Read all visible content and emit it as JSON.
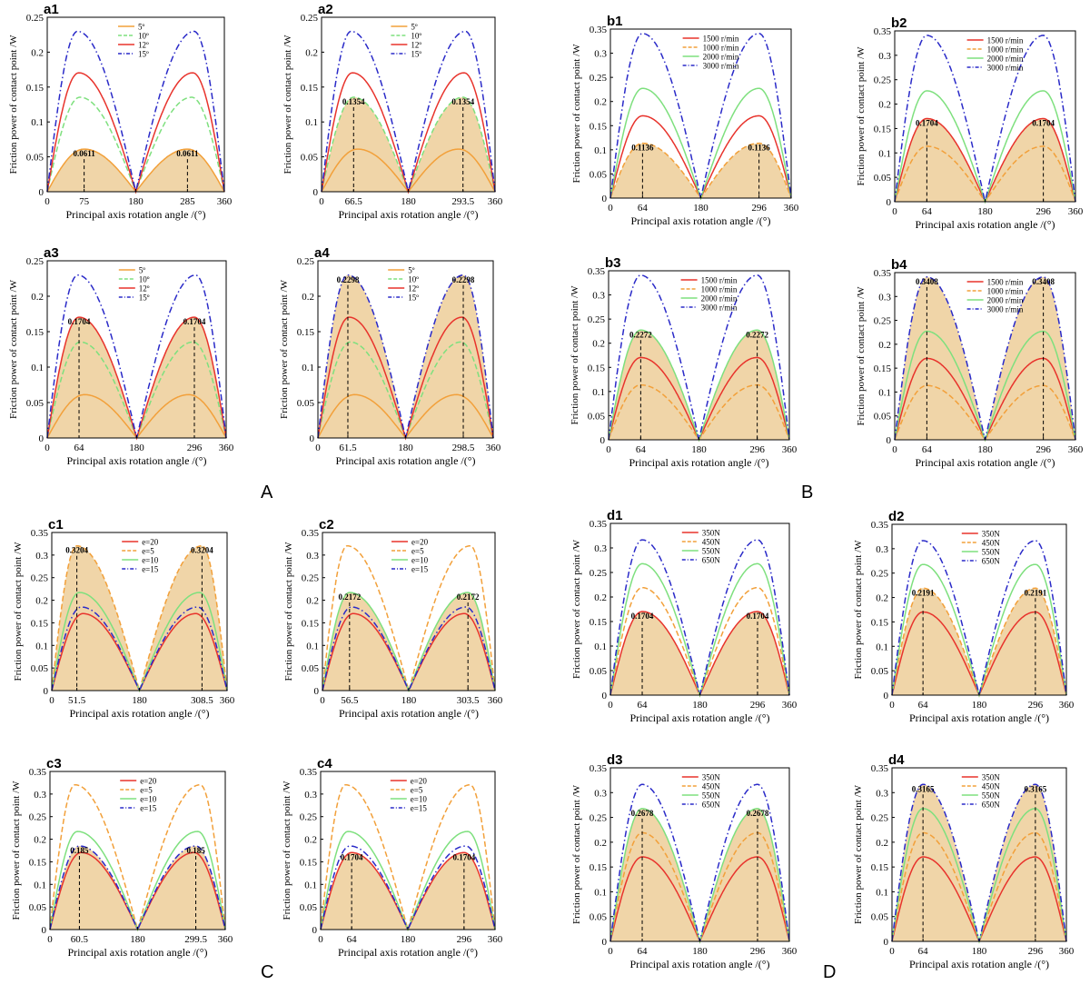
{
  "figure": {
    "group_labels": [
      "A",
      "B",
      "C",
      "D"
    ],
    "colors": {
      "fill": "#f0d5a8",
      "red": "#e8332c",
      "orange": "#f2a03a",
      "green": "#7ee07e",
      "blue": "#2a2ac8",
      "axis": "#000000",
      "peak_line": "#000000"
    },
    "legend_styles": [
      "solid",
      "dashed",
      "solid",
      "dashdot"
    ],
    "legend_orders": {
      "A": [
        "orange",
        "green",
        "red",
        "blue"
      ],
      "B": [
        "red",
        "orange",
        "green",
        "blue"
      ],
      "C": [
        "red",
        "orange",
        "green",
        "blue"
      ],
      "D": [
        "red",
        "orange",
        "green",
        "blue"
      ]
    }
  },
  "chart_data": [
    {
      "id": "a1",
      "group": "A",
      "type": "line",
      "title": "a1",
      "xlabel": "Principal axis rotation angle /(°)",
      "ylabel": "Friction power of contact point /W",
      "xlim": [
        0,
        360
      ],
      "ylim": [
        0,
        0.25
      ],
      "yticks": [
        0,
        0.05,
        0.1,
        0.15,
        0.2,
        0.25
      ],
      "xticks": [
        0,
        75,
        180,
        285,
        360
      ],
      "series": [
        {
          "name": "5º",
          "peak": 0.0611,
          "p1": 75,
          "p2": 285
        },
        {
          "name": "10º",
          "peak": 0.1354,
          "p1": 66.5,
          "p2": 293.5
        },
        {
          "name": "12º",
          "peak": 0.1704,
          "p1": 64,
          "p2": 296
        },
        {
          "name": "15º",
          "peak": 0.2298,
          "p1": 61.5,
          "p2": 298.5
        }
      ],
      "highlight": 0,
      "annotation": {
        "value": "0.0611",
        "x": [
          75,
          285
        ]
      }
    },
    {
      "id": "a2",
      "group": "A",
      "type": "line",
      "title": "a2",
      "xlabel": "Principal axis rotation angle /(°)",
      "ylabel": "Friction power of contact point /W",
      "xlim": [
        0,
        360
      ],
      "ylim": [
        0,
        0.25
      ],
      "yticks": [
        0,
        0.05,
        0.1,
        0.15,
        0.2,
        0.25
      ],
      "xticks": [
        0,
        66.5,
        180,
        293.5,
        360
      ],
      "series": [
        {
          "name": "5º",
          "peak": 0.0611,
          "p1": 75,
          "p2": 285
        },
        {
          "name": "10º",
          "peak": 0.1354,
          "p1": 66.5,
          "p2": 293.5
        },
        {
          "name": "12º",
          "peak": 0.1704,
          "p1": 64,
          "p2": 296
        },
        {
          "name": "15º",
          "peak": 0.2298,
          "p1": 61.5,
          "p2": 298.5
        }
      ],
      "highlight": 1,
      "annotation": {
        "value": "0.1354",
        "x": [
          66.5,
          293.5
        ]
      }
    },
    {
      "id": "b1",
      "group": "B",
      "type": "line",
      "title": "b1",
      "xlabel": "Principal axis rotation angle /(°)",
      "ylabel": "Friction power of contact point /W",
      "xlim": [
        0,
        360
      ],
      "ylim": [
        0,
        0.35
      ],
      "yticks": [
        0,
        0.05,
        0.1,
        0.15,
        0.2,
        0.25,
        0.3,
        0.35
      ],
      "xticks": [
        0,
        64,
        180,
        296,
        360
      ],
      "series": [
        {
          "name": "1500 r/min",
          "peak": 0.1704,
          "p1": 64,
          "p2": 296
        },
        {
          "name": "1000 r/min",
          "peak": 0.1136,
          "p1": 64,
          "p2": 296
        },
        {
          "name": "2000 r/min",
          "peak": 0.2272,
          "p1": 64,
          "p2": 296
        },
        {
          "name": "3000 r/min",
          "peak": 0.3408,
          "p1": 64,
          "p2": 296
        }
      ],
      "highlight": 1,
      "annotation": {
        "value": "0.1136",
        "x": [
          64,
          296
        ]
      }
    },
    {
      "id": "b2",
      "group": "B",
      "type": "line",
      "title": "b2",
      "xlabel": "Principal axis rotation angle /(°)",
      "ylabel": "Friction power of contact point /W",
      "xlim": [
        0,
        360
      ],
      "ylim": [
        0,
        0.35
      ],
      "yticks": [
        0,
        0.05,
        0.1,
        0.15,
        0.2,
        0.25,
        0.3,
        0.35
      ],
      "xticks": [
        0,
        64,
        180,
        296,
        360
      ],
      "series": [
        {
          "name": "1500 r/min",
          "peak": 0.1704,
          "p1": 64,
          "p2": 296
        },
        {
          "name": "1000 r/min",
          "peak": 0.1136,
          "p1": 64,
          "p2": 296
        },
        {
          "name": "2000 r/min",
          "peak": 0.2272,
          "p1": 64,
          "p2": 296
        },
        {
          "name": "3000 r/min",
          "peak": 0.3408,
          "p1": 64,
          "p2": 296
        }
      ],
      "highlight": 0,
      "annotation": {
        "value": "0.1704",
        "x": [
          64,
          296
        ]
      }
    },
    {
      "id": "a3",
      "group": "A",
      "type": "line",
      "title": "a3",
      "xlabel": "Principal axis rotation angle /(°)",
      "ylabel": "Friction power of contact point /W",
      "xlim": [
        0,
        360
      ],
      "ylim": [
        0,
        0.25
      ],
      "yticks": [
        0,
        0.05,
        0.1,
        0.15,
        0.2,
        0.25
      ],
      "xticks": [
        0,
        64,
        180,
        296,
        360
      ],
      "series": [
        {
          "name": "5º",
          "peak": 0.0611,
          "p1": 75,
          "p2": 285
        },
        {
          "name": "10º",
          "peak": 0.1354,
          "p1": 66.5,
          "p2": 293.5
        },
        {
          "name": "12º",
          "peak": 0.1704,
          "p1": 64,
          "p2": 296
        },
        {
          "name": "15º",
          "peak": 0.2298,
          "p1": 61.5,
          "p2": 298.5
        }
      ],
      "highlight": 2,
      "annotation": {
        "value": "0.1704",
        "x": [
          64,
          296
        ]
      }
    },
    {
      "id": "a4",
      "group": "A",
      "type": "line",
      "title": "a4",
      "xlabel": "Principal axis rotation angle /(°)",
      "ylabel": "Friction power of contact point /W",
      "xlim": [
        0,
        360
      ],
      "ylim": [
        0,
        0.25
      ],
      "yticks": [
        0,
        0.05,
        0.1,
        0.15,
        0.2,
        0.25
      ],
      "xticks": [
        0,
        61.5,
        180,
        298.5,
        360
      ],
      "series": [
        {
          "name": "5º",
          "peak": 0.0611,
          "p1": 75,
          "p2": 285
        },
        {
          "name": "10º",
          "peak": 0.1354,
          "p1": 66.5,
          "p2": 293.5
        },
        {
          "name": "12º",
          "peak": 0.1704,
          "p1": 64,
          "p2": 296
        },
        {
          "name": "15º",
          "peak": 0.2298,
          "p1": 61.5,
          "p2": 298.5
        }
      ],
      "highlight": 3,
      "annotation": {
        "value": "0.2298",
        "x": [
          61.5,
          298.5
        ]
      }
    },
    {
      "id": "b3",
      "group": "B",
      "type": "line",
      "title": "b3",
      "xlabel": "Principal axis rotation angle /(°)",
      "ylabel": "Friction power of contact point /W",
      "xlim": [
        0,
        360
      ],
      "ylim": [
        0,
        0.35
      ],
      "yticks": [
        0,
        0.05,
        0.1,
        0.15,
        0.2,
        0.25,
        0.3,
        0.35
      ],
      "xticks": [
        0,
        64,
        180,
        296,
        360
      ],
      "series": [
        {
          "name": "1500 r/min",
          "peak": 0.1704,
          "p1": 64,
          "p2": 296
        },
        {
          "name": "1000 r/min",
          "peak": 0.1136,
          "p1": 64,
          "p2": 296
        },
        {
          "name": "2000 r/min",
          "peak": 0.2272,
          "p1": 64,
          "p2": 296
        },
        {
          "name": "3000 r/min",
          "peak": 0.3408,
          "p1": 64,
          "p2": 296
        }
      ],
      "highlight": 2,
      "annotation": {
        "value": "0.2272",
        "x": [
          64,
          296
        ]
      }
    },
    {
      "id": "b4",
      "group": "B",
      "type": "line",
      "title": "b4",
      "xlabel": "Principal axis rotation angle /(°)",
      "ylabel": "Friction power of contact point /W",
      "xlim": [
        0,
        360
      ],
      "ylim": [
        0,
        0.35
      ],
      "yticks": [
        0,
        0.05,
        0.1,
        0.15,
        0.2,
        0.25,
        0.3,
        0.35
      ],
      "xticks": [
        0,
        64,
        180,
        296,
        360
      ],
      "series": [
        {
          "name": "1500 r/min",
          "peak": 0.1704,
          "p1": 64,
          "p2": 296
        },
        {
          "name": "1000 r/min",
          "peak": 0.1136,
          "p1": 64,
          "p2": 296
        },
        {
          "name": "2000 r/min",
          "peak": 0.2272,
          "p1": 64,
          "p2": 296
        },
        {
          "name": "3000 r/min",
          "peak": 0.3408,
          "p1": 64,
          "p2": 296
        }
      ],
      "highlight": 3,
      "annotation": {
        "value": "0.3408",
        "x": [
          64,
          296
        ]
      }
    },
    {
      "id": "c1",
      "group": "C",
      "type": "line",
      "title": "c1",
      "xlabel": "Principal axis rotation angle /(°)",
      "ylabel": "Friction power of contact point /W",
      "xlim": [
        0,
        360
      ],
      "ylim": [
        0,
        0.35
      ],
      "yticks": [
        0,
        0.05,
        0.1,
        0.15,
        0.2,
        0.25,
        0.3,
        0.35
      ],
      "xticks": [
        0,
        51.5,
        180,
        308.5,
        360
      ],
      "series": [
        {
          "name": "e=20",
          "peak": 0.1704,
          "p1": 64,
          "p2": 296
        },
        {
          "name": "e=5",
          "peak": 0.3204,
          "p1": 51.5,
          "p2": 308.5,
          "mid_bumps": 0.12
        },
        {
          "name": "e=10",
          "peak": 0.2172,
          "p1": 56.5,
          "p2": 303.5,
          "mid_bumps": 0.02
        },
        {
          "name": "e=15",
          "peak": 0.185,
          "p1": 60.5,
          "p2": 299.5
        }
      ],
      "highlight": 1,
      "annotation": {
        "value": "0.3204",
        "x": [
          51.5,
          308.5
        ]
      }
    },
    {
      "id": "c2",
      "group": "C",
      "type": "line",
      "title": "c2",
      "xlabel": "Principal axis rotation angle /(°)",
      "ylabel": "Friction power of contact point /W",
      "xlim": [
        0,
        360
      ],
      "ylim": [
        0,
        0.35
      ],
      "yticks": [
        0,
        0.05,
        0.1,
        0.15,
        0.2,
        0.25,
        0.3,
        0.35
      ],
      "xticks": [
        0,
        56.5,
        180,
        303.5,
        360
      ],
      "series": [
        {
          "name": "e=20",
          "peak": 0.1704,
          "p1": 64,
          "p2": 296
        },
        {
          "name": "e=5",
          "peak": 0.3204,
          "p1": 51.5,
          "p2": 308.5,
          "mid_bumps": 0.12
        },
        {
          "name": "e=10",
          "peak": 0.2172,
          "p1": 56.5,
          "p2": 303.5,
          "mid_bumps": 0.02
        },
        {
          "name": "e=15",
          "peak": 0.185,
          "p1": 60.5,
          "p2": 299.5
        }
      ],
      "highlight": 2,
      "annotation": {
        "value": "0.2172",
        "x": [
          56.5,
          303.5
        ]
      }
    },
    {
      "id": "d1",
      "group": "D",
      "type": "line",
      "title": "d1",
      "xlabel": "Principal axis rotation angle /(°)",
      "ylabel": "Friction power of contact point /W",
      "xlim": [
        0,
        360
      ],
      "ylim": [
        0,
        0.35
      ],
      "yticks": [
        0,
        0.05,
        0.1,
        0.15,
        0.2,
        0.25,
        0.3,
        0.35
      ],
      "xticks": [
        0,
        64,
        180,
        296,
        360
      ],
      "series": [
        {
          "name": "350N",
          "peak": 0.1704,
          "p1": 64,
          "p2": 296
        },
        {
          "name": "450N",
          "peak": 0.2191,
          "p1": 64,
          "p2": 296
        },
        {
          "name": "550N",
          "peak": 0.2678,
          "p1": 64,
          "p2": 296
        },
        {
          "name": "650N",
          "peak": 0.3165,
          "p1": 64,
          "p2": 296
        }
      ],
      "highlight": 0,
      "annotation": {
        "value": "0.1704",
        "x": [
          64,
          296
        ]
      }
    },
    {
      "id": "d2",
      "group": "D",
      "type": "line",
      "title": "d2",
      "xlabel": "Principal axis rotation angle /(°)",
      "ylabel": "Friction power of contact point /W",
      "xlim": [
        0,
        360
      ],
      "ylim": [
        0,
        0.35
      ],
      "yticks": [
        0,
        0.05,
        0.1,
        0.15,
        0.2,
        0.25,
        0.3,
        0.35
      ],
      "xticks": [
        0,
        64,
        180,
        296,
        360
      ],
      "series": [
        {
          "name": "350N",
          "peak": 0.1704,
          "p1": 64,
          "p2": 296
        },
        {
          "name": "450N",
          "peak": 0.2191,
          "p1": 64,
          "p2": 296
        },
        {
          "name": "550N",
          "peak": 0.2678,
          "p1": 64,
          "p2": 296
        },
        {
          "name": "650N",
          "peak": 0.3165,
          "p1": 64,
          "p2": 296
        }
      ],
      "highlight": 1,
      "annotation": {
        "value": "0.2191",
        "x": [
          64,
          296
        ]
      }
    },
    {
      "id": "c3",
      "group": "C",
      "type": "line",
      "title": "c3",
      "xlabel": "Principal axis rotation angle /(°)",
      "ylabel": "Friction power of contact point /W",
      "xlim": [
        0,
        360
      ],
      "ylim": [
        0,
        0.35
      ],
      "yticks": [
        0,
        0.05,
        0.1,
        0.15,
        0.2,
        0.25,
        0.3,
        0.35
      ],
      "xticks": [
        0,
        60.5,
        180,
        299.5,
        360
      ],
      "series": [
        {
          "name": "e=20",
          "peak": 0.1704,
          "p1": 64,
          "p2": 296
        },
        {
          "name": "e=5",
          "peak": 0.3204,
          "p1": 51.5,
          "p2": 308.5,
          "mid_bumps": 0.12
        },
        {
          "name": "e=10",
          "peak": 0.2172,
          "p1": 56.5,
          "p2": 303.5,
          "mid_bumps": 0.02
        },
        {
          "name": "e=15",
          "peak": 0.185,
          "p1": 60.5,
          "p2": 299.5
        }
      ],
      "highlight": 3,
      "annotation": {
        "value": "0.185",
        "x": [
          60.5,
          299.5
        ]
      }
    },
    {
      "id": "c4",
      "group": "C",
      "type": "line",
      "title": "c4",
      "xlabel": "Principal axis rotation angle /(°)",
      "ylabel": "Friction power of contact point /W",
      "xlim": [
        0,
        360
      ],
      "ylim": [
        0,
        0.35
      ],
      "yticks": [
        0,
        0.05,
        0.1,
        0.15,
        0.2,
        0.25,
        0.3,
        0.35
      ],
      "xticks": [
        0,
        64,
        180,
        296,
        360
      ],
      "series": [
        {
          "name": "e=20",
          "peak": 0.1704,
          "p1": 64,
          "p2": 296
        },
        {
          "name": "e=5",
          "peak": 0.3204,
          "p1": 51.5,
          "p2": 308.5,
          "mid_bumps": 0.12
        },
        {
          "name": "e=10",
          "peak": 0.2172,
          "p1": 56.5,
          "p2": 303.5,
          "mid_bumps": 0.02
        },
        {
          "name": "e=15",
          "peak": 0.185,
          "p1": 60.5,
          "p2": 299.5
        }
      ],
      "highlight": 0,
      "annotation": {
        "value": "0.1704",
        "x": [
          64,
          296
        ]
      }
    },
    {
      "id": "d3",
      "group": "D",
      "type": "line",
      "title": "d3",
      "xlabel": "Principal axis rotation angle /(°)",
      "ylabel": "Friction power of contact point /W",
      "xlim": [
        0,
        360
      ],
      "ylim": [
        0,
        0.35
      ],
      "yticks": [
        0,
        0.05,
        0.1,
        0.15,
        0.2,
        0.25,
        0.3,
        0.35
      ],
      "xticks": [
        0,
        64,
        180,
        296,
        360
      ],
      "series": [
        {
          "name": "350N",
          "peak": 0.1704,
          "p1": 64,
          "p2": 296
        },
        {
          "name": "450N",
          "peak": 0.2191,
          "p1": 64,
          "p2": 296
        },
        {
          "name": "550N",
          "peak": 0.2678,
          "p1": 64,
          "p2": 296
        },
        {
          "name": "650N",
          "peak": 0.3165,
          "p1": 64,
          "p2": 296
        }
      ],
      "highlight": 2,
      "annotation": {
        "value": "0.2678",
        "x": [
          64,
          296
        ]
      }
    },
    {
      "id": "d4",
      "group": "D",
      "type": "line",
      "title": "d4",
      "xlabel": "Principal axis rotation angle /(°)",
      "ylabel": "Friction power of contact point /W",
      "xlim": [
        0,
        360
      ],
      "ylim": [
        0,
        0.35
      ],
      "yticks": [
        0,
        0.05,
        0.1,
        0.15,
        0.2,
        0.25,
        0.3,
        0.35
      ],
      "xticks": [
        0,
        64,
        180,
        296,
        360
      ],
      "series": [
        {
          "name": "350N",
          "peak": 0.1704,
          "p1": 64,
          "p2": 296
        },
        {
          "name": "450N",
          "peak": 0.2191,
          "p1": 64,
          "p2": 296
        },
        {
          "name": "550N",
          "peak": 0.2678,
          "p1": 64,
          "p2": 296
        },
        {
          "name": "650N",
          "peak": 0.3165,
          "p1": 64,
          "p2": 296
        }
      ],
      "highlight": 3,
      "annotation": {
        "value": "0.3165",
        "x": [
          64,
          296
        ]
      }
    }
  ]
}
